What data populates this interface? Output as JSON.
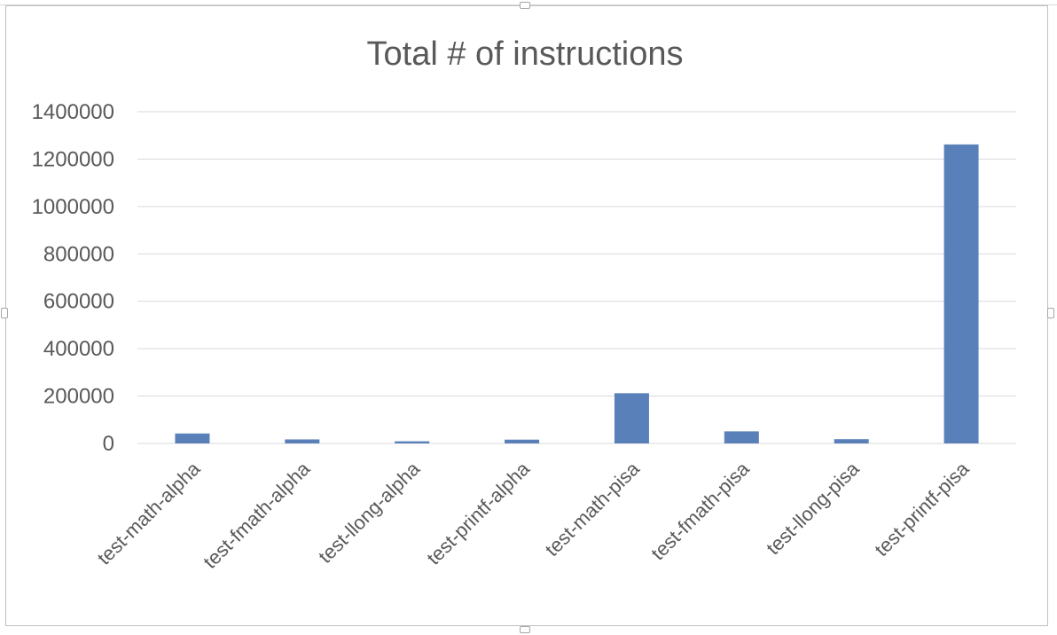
{
  "chart_data": {
    "type": "bar",
    "title": "Total # of instructions",
    "xlabel": "",
    "ylabel": "",
    "categories": [
      "test-math-alpha",
      "test-fmath-alpha",
      "test-llong-alpha",
      "test-printf-alpha",
      "test-math-pisa",
      "test-fmath-pisa",
      "test-llong-pisa",
      "test-printf-pisa"
    ],
    "values": [
      42000,
      17000,
      9000,
      16000,
      212000,
      51000,
      18000,
      1262000
    ],
    "ylim": [
      0,
      1400000
    ],
    "yticks": [
      "0",
      "200000",
      "400000",
      "600000",
      "800000",
      "1000000",
      "1200000",
      "1400000"
    ],
    "grid": true,
    "legend": "none",
    "bar_color": "#5a80b9",
    "grid_color": "#d9d9d9"
  }
}
